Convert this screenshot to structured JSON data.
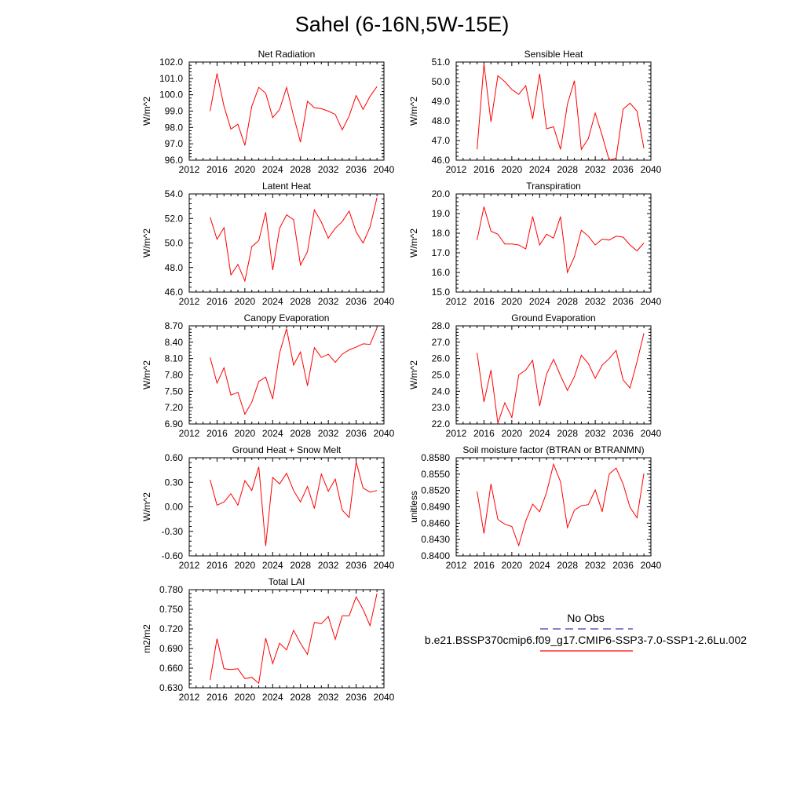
{
  "title": "Sahel (6-16N,5W-15E)",
  "colors": {
    "model": "#ff0000",
    "obs": "#3a3ab0",
    "axis": "#000000"
  },
  "legend": {
    "obs_label": "No Obs",
    "model_label": "b.e21.BSSP370cmip6.f09_g17.CMIP6-SSP3-7.0-SSP1-2.6Lu.002"
  },
  "chart_data": [
    {
      "type": "line",
      "title": "Net Radiation",
      "ylabel": "W/m^2",
      "xlim": [
        2012,
        2040
      ],
      "ylim": [
        96.0,
        102.0
      ],
      "xticks": [
        2012,
        2016,
        2020,
        2024,
        2028,
        2032,
        2036,
        2040
      ],
      "yticks": [
        "96.0",
        "97.0",
        "98.0",
        "99.0",
        "100.0",
        "101.0",
        "102.0"
      ],
      "x": [
        2015,
        2016,
        2017,
        2018,
        2019,
        2020,
        2021,
        2022,
        2023,
        2024,
        2025,
        2026,
        2027,
        2028,
        2029,
        2030,
        2031,
        2032,
        2033,
        2034,
        2035,
        2036,
        2037,
        2038,
        2039
      ],
      "values": [
        99.0,
        101.3,
        99.3,
        97.9,
        98.2,
        96.9,
        99.3,
        100.45,
        100.1,
        98.6,
        99.1,
        100.45,
        98.7,
        97.1,
        99.6,
        99.2,
        99.15,
        99.0,
        98.8,
        97.85,
        98.7,
        99.95,
        99.1,
        99.9,
        100.5
      ],
      "grid": false
    },
    {
      "type": "line",
      "title": "Sensible Heat",
      "ylabel": "W/m^2",
      "xlim": [
        2012,
        2040
      ],
      "ylim": [
        46.0,
        51.0
      ],
      "xticks": [
        2012,
        2016,
        2020,
        2024,
        2028,
        2032,
        2036,
        2040
      ],
      "yticks": [
        "46.0",
        "47.0",
        "48.0",
        "49.0",
        "50.0",
        "51.0"
      ],
      "x": [
        2015,
        2016,
        2017,
        2018,
        2019,
        2020,
        2021,
        2022,
        2023,
        2024,
        2025,
        2026,
        2027,
        2028,
        2029,
        2030,
        2031,
        2032,
        2033,
        2034,
        2035,
        2036,
        2037,
        2038,
        2039
      ],
      "values": [
        46.55,
        50.9,
        47.95,
        50.3,
        50.0,
        49.6,
        49.35,
        49.8,
        48.1,
        50.4,
        47.6,
        47.7,
        46.55,
        48.85,
        50.05,
        46.55,
        47.1,
        48.4,
        47.25,
        46.0,
        46.1,
        48.6,
        48.9,
        48.5,
        46.6
      ],
      "grid": false
    },
    {
      "type": "line",
      "title": "Latent Heat",
      "ylabel": "W/m^2",
      "xlim": [
        2012,
        2040
      ],
      "ylim": [
        46.0,
        54.0
      ],
      "xticks": [
        2012,
        2016,
        2020,
        2024,
        2028,
        2032,
        2036,
        2040
      ],
      "yticks": [
        "46.0",
        "48.0",
        "50.0",
        "52.0",
        "54.0"
      ],
      "x": [
        2015,
        2016,
        2017,
        2018,
        2019,
        2020,
        2021,
        2022,
        2023,
        2024,
        2025,
        2026,
        2027,
        2028,
        2029,
        2030,
        2031,
        2032,
        2033,
        2034,
        2035,
        2036,
        2037,
        2038,
        2039
      ],
      "values": [
        52.1,
        50.3,
        51.25,
        47.4,
        48.25,
        46.9,
        49.7,
        50.2,
        52.5,
        47.8,
        51.2,
        52.3,
        51.9,
        48.2,
        49.3,
        52.7,
        51.7,
        50.4,
        51.2,
        51.75,
        52.6,
        50.9,
        50.0,
        51.3,
        53.7
      ],
      "grid": false
    },
    {
      "type": "line",
      "title": "Transpiration",
      "ylabel": "W/m^2",
      "xlim": [
        2012,
        2040
      ],
      "ylim": [
        15.0,
        20.0
      ],
      "xticks": [
        2012,
        2016,
        2020,
        2024,
        2028,
        2032,
        2036,
        2040
      ],
      "yticks": [
        "15.0",
        "16.0",
        "17.0",
        "18.0",
        "19.0",
        "20.0"
      ],
      "x": [
        2015,
        2016,
        2017,
        2018,
        2019,
        2020,
        2021,
        2022,
        2023,
        2024,
        2025,
        2026,
        2027,
        2028,
        2029,
        2030,
        2031,
        2032,
        2033,
        2034,
        2035,
        2036,
        2037,
        2038,
        2039
      ],
      "values": [
        17.65,
        19.35,
        18.1,
        17.95,
        17.45,
        17.45,
        17.4,
        17.2,
        18.85,
        17.4,
        17.95,
        17.75,
        18.85,
        16.0,
        16.8,
        18.15,
        17.85,
        17.4,
        17.7,
        17.65,
        17.85,
        17.8,
        17.4,
        17.1,
        17.5
      ],
      "grid": false
    },
    {
      "type": "line",
      "title": "Canopy Evaporation",
      "ylabel": "W/m^2",
      "xlim": [
        2012,
        2040
      ],
      "ylim": [
        6.9,
        8.7
      ],
      "xticks": [
        2012,
        2016,
        2020,
        2024,
        2028,
        2032,
        2036,
        2040
      ],
      "yticks": [
        "6.90",
        "7.20",
        "7.50",
        "7.80",
        "8.10",
        "8.40",
        "8.70"
      ],
      "x": [
        2015,
        2016,
        2017,
        2018,
        2019,
        2020,
        2021,
        2022,
        2023,
        2024,
        2025,
        2026,
        2027,
        2028,
        2029,
        2030,
        2031,
        2032,
        2033,
        2034,
        2035,
        2036,
        2037,
        2038,
        2039
      ],
      "values": [
        8.12,
        7.65,
        7.93,
        7.43,
        7.48,
        7.08,
        7.3,
        7.68,
        7.76,
        7.36,
        8.2,
        8.65,
        7.98,
        8.22,
        7.6,
        8.3,
        8.12,
        8.18,
        8.03,
        8.18,
        8.26,
        8.31,
        8.37,
        8.36,
        8.66
      ],
      "grid": false
    },
    {
      "type": "line",
      "title": "Ground Evaporation",
      "ylabel": "W/m^2",
      "xlim": [
        2012,
        2040
      ],
      "ylim": [
        22.0,
        28.0
      ],
      "xticks": [
        2012,
        2016,
        2020,
        2024,
        2028,
        2032,
        2036,
        2040
      ],
      "yticks": [
        "22.0",
        "23.0",
        "24.0",
        "25.0",
        "26.0",
        "27.0",
        "28.0"
      ],
      "x": [
        2015,
        2016,
        2017,
        2018,
        2019,
        2020,
        2021,
        2022,
        2023,
        2024,
        2025,
        2026,
        2027,
        2028,
        2029,
        2030,
        2031,
        2032,
        2033,
        2034,
        2035,
        2036,
        2037,
        2038,
        2039
      ],
      "values": [
        26.35,
        23.35,
        25.3,
        22.05,
        23.3,
        22.4,
        25.0,
        25.3,
        25.9,
        23.1,
        25.05,
        25.95,
        24.95,
        24.05,
        24.9,
        26.2,
        25.7,
        24.8,
        25.6,
        26.0,
        26.5,
        24.7,
        24.2,
        25.8,
        27.55
      ],
      "grid": false
    },
    {
      "type": "line",
      "title": "Ground Heat + Snow Melt",
      "ylabel": "W/m^2",
      "xlim": [
        2012,
        2040
      ],
      "ylim": [
        -0.6,
        0.6
      ],
      "xticks": [
        2012,
        2016,
        2020,
        2024,
        2028,
        2032,
        2036,
        2040
      ],
      "yticks": [
        "-0.60",
        "-0.30",
        "0.00",
        "0.30",
        "0.60"
      ],
      "x": [
        2015,
        2016,
        2017,
        2018,
        2019,
        2020,
        2021,
        2022,
        2023,
        2024,
        2025,
        2026,
        2027,
        2028,
        2029,
        2030,
        2031,
        2032,
        2033,
        2034,
        2035,
        2036,
        2037,
        2038,
        2039
      ],
      "values": [
        0.33,
        0.02,
        0.06,
        0.16,
        0.02,
        0.32,
        0.2,
        0.49,
        -0.48,
        0.36,
        0.28,
        0.41,
        0.2,
        0.06,
        0.25,
        -0.02,
        0.4,
        0.19,
        0.34,
        -0.04,
        -0.13,
        0.55,
        0.23,
        0.18,
        0.2
      ],
      "grid": false
    },
    {
      "type": "line",
      "title": "Soil moisture factor (BTRAN or BTRANMN)",
      "ylabel": "unitless",
      "xlim": [
        2012,
        2040
      ],
      "ylim": [
        0.84,
        0.858
      ],
      "xticks": [
        2012,
        2016,
        2020,
        2024,
        2028,
        2032,
        2036,
        2040
      ],
      "yticks": [
        "0.8400",
        "0.8430",
        "0.8460",
        "0.8490",
        "0.8520",
        "0.8550",
        "0.8580"
      ],
      "x": [
        2015,
        2016,
        2017,
        2018,
        2019,
        2020,
        2021,
        2022,
        2023,
        2024,
        2025,
        2026,
        2027,
        2028,
        2029,
        2030,
        2031,
        2032,
        2033,
        2034,
        2035,
        2036,
        2037,
        2038,
        2039
      ],
      "values": [
        0.8518,
        0.8441,
        0.8532,
        0.8467,
        0.8458,
        0.8454,
        0.8419,
        0.8464,
        0.8495,
        0.8481,
        0.8516,
        0.8568,
        0.8536,
        0.8452,
        0.8484,
        0.8492,
        0.8494,
        0.8521,
        0.8481,
        0.855,
        0.8561,
        0.8532,
        0.8489,
        0.847,
        0.8551
      ],
      "grid": false
    },
    {
      "type": "line",
      "title": "Total LAI",
      "ylabel": "m2/m2",
      "xlim": [
        2012,
        2040
      ],
      "ylim": [
        0.63,
        0.78
      ],
      "xticks": [
        2012,
        2016,
        2020,
        2024,
        2028,
        2032,
        2036,
        2040
      ],
      "yticks": [
        "0.630",
        "0.660",
        "0.690",
        "0.720",
        "0.750",
        "0.780"
      ],
      "x": [
        2015,
        2016,
        2017,
        2018,
        2019,
        2020,
        2021,
        2022,
        2023,
        2024,
        2025,
        2026,
        2027,
        2028,
        2029,
        2030,
        2031,
        2032,
        2033,
        2034,
        2035,
        2036,
        2037,
        2038,
        2039
      ],
      "values": [
        0.642,
        0.705,
        0.659,
        0.658,
        0.659,
        0.644,
        0.646,
        0.637,
        0.706,
        0.667,
        0.698,
        0.688,
        0.718,
        0.698,
        0.681,
        0.73,
        0.728,
        0.739,
        0.704,
        0.74,
        0.74,
        0.769,
        0.75,
        0.725,
        0.774
      ],
      "grid": false
    }
  ]
}
